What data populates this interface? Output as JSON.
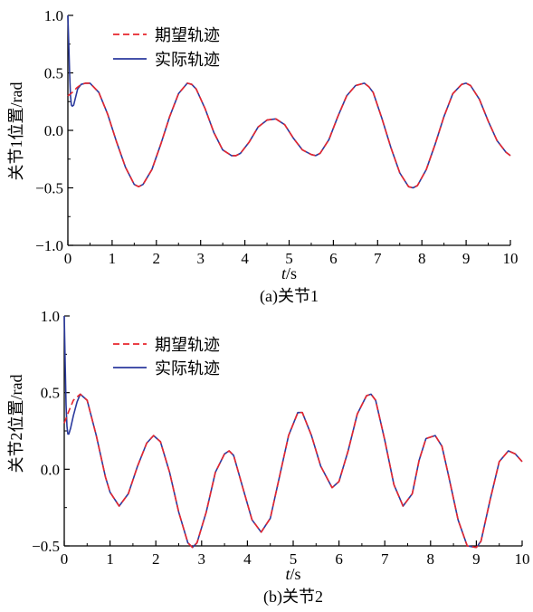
{
  "chart_data": [
    {
      "type": "line",
      "caption": "(a)关节1",
      "xlabel_italic": "t",
      "xlabel_unit": "/s",
      "ylabel": "关节1位置/rad",
      "xlim": [
        0,
        10
      ],
      "ylim": [
        -1.0,
        1.0
      ],
      "xticks": [
        "0",
        "1",
        "2",
        "3",
        "4",
        "5",
        "6",
        "7",
        "8",
        "9",
        "10"
      ],
      "yticks": [
        "1.0",
        "0.5",
        "0.0",
        "−0.5",
        "−1.0"
      ],
      "legend_position": "top-center",
      "grid": false,
      "series": [
        {
          "name": "期望轨迹",
          "color": "#e8262d",
          "style": "dashed",
          "x": [
            0,
            0.1,
            0.2,
            0.3,
            0.4,
            0.5,
            0.7,
            0.9,
            1.1,
            1.3,
            1.5,
            1.6,
            1.7,
            1.9,
            2.1,
            2.3,
            2.5,
            2.7,
            2.8,
            2.9,
            3.1,
            3.3,
            3.5,
            3.7,
            3.8,
            3.9,
            4.1,
            4.3,
            4.5,
            4.7,
            4.9,
            5.1,
            5.3,
            5.5,
            5.6,
            5.7,
            5.9,
            6.1,
            6.3,
            6.5,
            6.7,
            6.8,
            6.9,
            7.1,
            7.3,
            7.5,
            7.7,
            7.8,
            7.9,
            8.1,
            8.3,
            8.5,
            8.7,
            8.9,
            9.0,
            9.1,
            9.3,
            9.5,
            9.7,
            9.9,
            10.0
          ],
          "y": [
            0.3,
            0.33,
            0.37,
            0.4,
            0.41,
            0.41,
            0.33,
            0.14,
            -0.1,
            -0.32,
            -0.47,
            -0.49,
            -0.47,
            -0.34,
            -0.12,
            0.12,
            0.32,
            0.41,
            0.4,
            0.36,
            0.19,
            -0.02,
            -0.17,
            -0.22,
            -0.22,
            -0.2,
            -0.1,
            0.03,
            0.09,
            0.1,
            0.05,
            -0.07,
            -0.17,
            -0.21,
            -0.22,
            -0.2,
            -0.08,
            0.12,
            0.3,
            0.39,
            0.41,
            0.38,
            0.33,
            0.1,
            -0.15,
            -0.37,
            -0.49,
            -0.5,
            -0.48,
            -0.34,
            -0.12,
            0.12,
            0.32,
            0.4,
            0.41,
            0.39,
            0.27,
            0.08,
            -0.09,
            -0.19,
            -0.22
          ]
        },
        {
          "name": "实际轨迹",
          "color": "#2b3a9e",
          "style": "solid",
          "x": [
            0,
            0.02,
            0.04,
            0.06,
            0.08,
            0.1,
            0.13,
            0.17,
            0.22,
            0.3,
            0.4,
            0.5,
            0.7,
            0.9,
            1.1,
            1.3,
            1.5,
            1.6,
            1.7,
            1.9,
            2.1,
            2.3,
            2.5,
            2.7,
            2.8,
            2.9,
            3.1,
            3.3,
            3.5,
            3.7,
            3.8,
            3.9,
            4.1,
            4.3,
            4.5,
            4.7,
            4.9,
            5.1,
            5.3,
            5.5,
            5.6,
            5.7,
            5.9,
            6.1,
            6.3,
            6.5,
            6.7,
            6.8,
            6.9,
            7.1,
            7.3,
            7.5,
            7.7,
            7.8,
            7.9,
            8.1,
            8.3,
            8.5,
            8.7,
            8.9,
            9.0,
            9.1,
            9.3,
            9.5,
            9.7,
            9.9,
            10.0
          ],
          "y": [
            1.0,
            0.75,
            0.48,
            0.3,
            0.22,
            0.21,
            0.22,
            0.28,
            0.36,
            0.4,
            0.41,
            0.41,
            0.33,
            0.14,
            -0.1,
            -0.32,
            -0.47,
            -0.49,
            -0.47,
            -0.34,
            -0.12,
            0.12,
            0.32,
            0.41,
            0.4,
            0.36,
            0.19,
            -0.02,
            -0.17,
            -0.22,
            -0.22,
            -0.2,
            -0.1,
            0.03,
            0.09,
            0.1,
            0.05,
            -0.07,
            -0.17,
            -0.21,
            -0.22,
            -0.2,
            -0.08,
            0.12,
            0.3,
            0.39,
            0.41,
            0.38,
            0.33,
            0.1,
            -0.15,
            -0.37,
            -0.49,
            -0.5,
            -0.48,
            -0.34,
            -0.12,
            0.12,
            0.32,
            0.4,
            0.41,
            0.39,
            0.27,
            0.08,
            -0.09,
            -0.19,
            -0.22
          ]
        }
      ]
    },
    {
      "type": "line",
      "caption": "(b)关节2",
      "xlabel_italic": "t",
      "xlabel_unit": "/s",
      "ylabel": "关节2位置/rad",
      "xlim": [
        0,
        10
      ],
      "ylim": [
        -0.5,
        1.0
      ],
      "xticks": [
        "0",
        "1",
        "2",
        "3",
        "4",
        "5",
        "6",
        "7",
        "8",
        "9",
        "10"
      ],
      "yticks": [
        "1.0",
        "0.5",
        "0.0",
        "−0.5"
      ],
      "legend_position": "top-center",
      "grid": false,
      "series": [
        {
          "name": "期望轨迹",
          "color": "#e8262d",
          "style": "dashed",
          "x": [
            0,
            0.1,
            0.2,
            0.35,
            0.5,
            0.7,
            0.9,
            1.0,
            1.2,
            1.4,
            1.6,
            1.8,
            1.95,
            2.1,
            2.3,
            2.5,
            2.7,
            2.8,
            2.9,
            3.1,
            3.3,
            3.5,
            3.6,
            3.7,
            3.9,
            4.1,
            4.3,
            4.5,
            4.7,
            4.9,
            5.1,
            5.2,
            5.4,
            5.6,
            5.85,
            6.0,
            6.2,
            6.4,
            6.6,
            6.7,
            6.8,
            7.0,
            7.2,
            7.4,
            7.6,
            7.75,
            7.9,
            8.1,
            8.25,
            8.4,
            8.6,
            8.8,
            9.0,
            9.1,
            9.3,
            9.5,
            9.7,
            9.85,
            10.0
          ],
          "y": [
            0.3,
            0.38,
            0.45,
            0.49,
            0.45,
            0.22,
            -0.05,
            -0.15,
            -0.24,
            -0.16,
            0.02,
            0.17,
            0.22,
            0.18,
            -0.02,
            -0.28,
            -0.48,
            -0.51,
            -0.48,
            -0.28,
            -0.02,
            0.1,
            0.12,
            0.09,
            -0.12,
            -0.33,
            -0.41,
            -0.32,
            -0.05,
            0.22,
            0.37,
            0.37,
            0.22,
            0.02,
            -0.12,
            -0.08,
            0.12,
            0.36,
            0.48,
            0.49,
            0.45,
            0.19,
            -0.1,
            -0.24,
            -0.16,
            0.06,
            0.2,
            0.22,
            0.15,
            -0.05,
            -0.33,
            -0.5,
            -0.51,
            -0.47,
            -0.2,
            0.05,
            0.12,
            0.1,
            0.05
          ]
        },
        {
          "name": "实际轨迹",
          "color": "#2b3a9e",
          "style": "solid",
          "x": [
            0,
            0.02,
            0.04,
            0.06,
            0.08,
            0.1,
            0.14,
            0.2,
            0.28,
            0.35,
            0.5,
            0.7,
            0.9,
            1.0,
            1.2,
            1.4,
            1.6,
            1.8,
            1.95,
            2.1,
            2.3,
            2.5,
            2.7,
            2.8,
            2.9,
            3.1,
            3.3,
            3.5,
            3.6,
            3.7,
            3.9,
            4.1,
            4.3,
            4.5,
            4.7,
            4.9,
            5.1,
            5.2,
            5.4,
            5.6,
            5.85,
            6.0,
            6.2,
            6.4,
            6.6,
            6.7,
            6.8,
            7.0,
            7.2,
            7.4,
            7.6,
            7.75,
            7.9,
            8.1,
            8.25,
            8.4,
            8.6,
            8.8,
            9.0,
            9.1,
            9.3,
            9.5,
            9.7,
            9.85,
            10.0
          ],
          "y": [
            1.0,
            0.7,
            0.42,
            0.28,
            0.23,
            0.23,
            0.27,
            0.35,
            0.44,
            0.49,
            0.45,
            0.22,
            -0.05,
            -0.15,
            -0.24,
            -0.16,
            0.02,
            0.17,
            0.22,
            0.18,
            -0.02,
            -0.28,
            -0.48,
            -0.51,
            -0.48,
            -0.28,
            -0.02,
            0.1,
            0.12,
            0.09,
            -0.12,
            -0.33,
            -0.41,
            -0.32,
            -0.05,
            0.22,
            0.37,
            0.37,
            0.22,
            0.02,
            -0.12,
            -0.08,
            0.12,
            0.36,
            0.48,
            0.49,
            0.45,
            0.19,
            -0.1,
            -0.24,
            -0.16,
            0.06,
            0.2,
            0.22,
            0.15,
            -0.05,
            -0.33,
            -0.5,
            -0.51,
            -0.47,
            -0.2,
            0.05,
            0.12,
            0.1,
            0.05
          ]
        }
      ]
    }
  ]
}
